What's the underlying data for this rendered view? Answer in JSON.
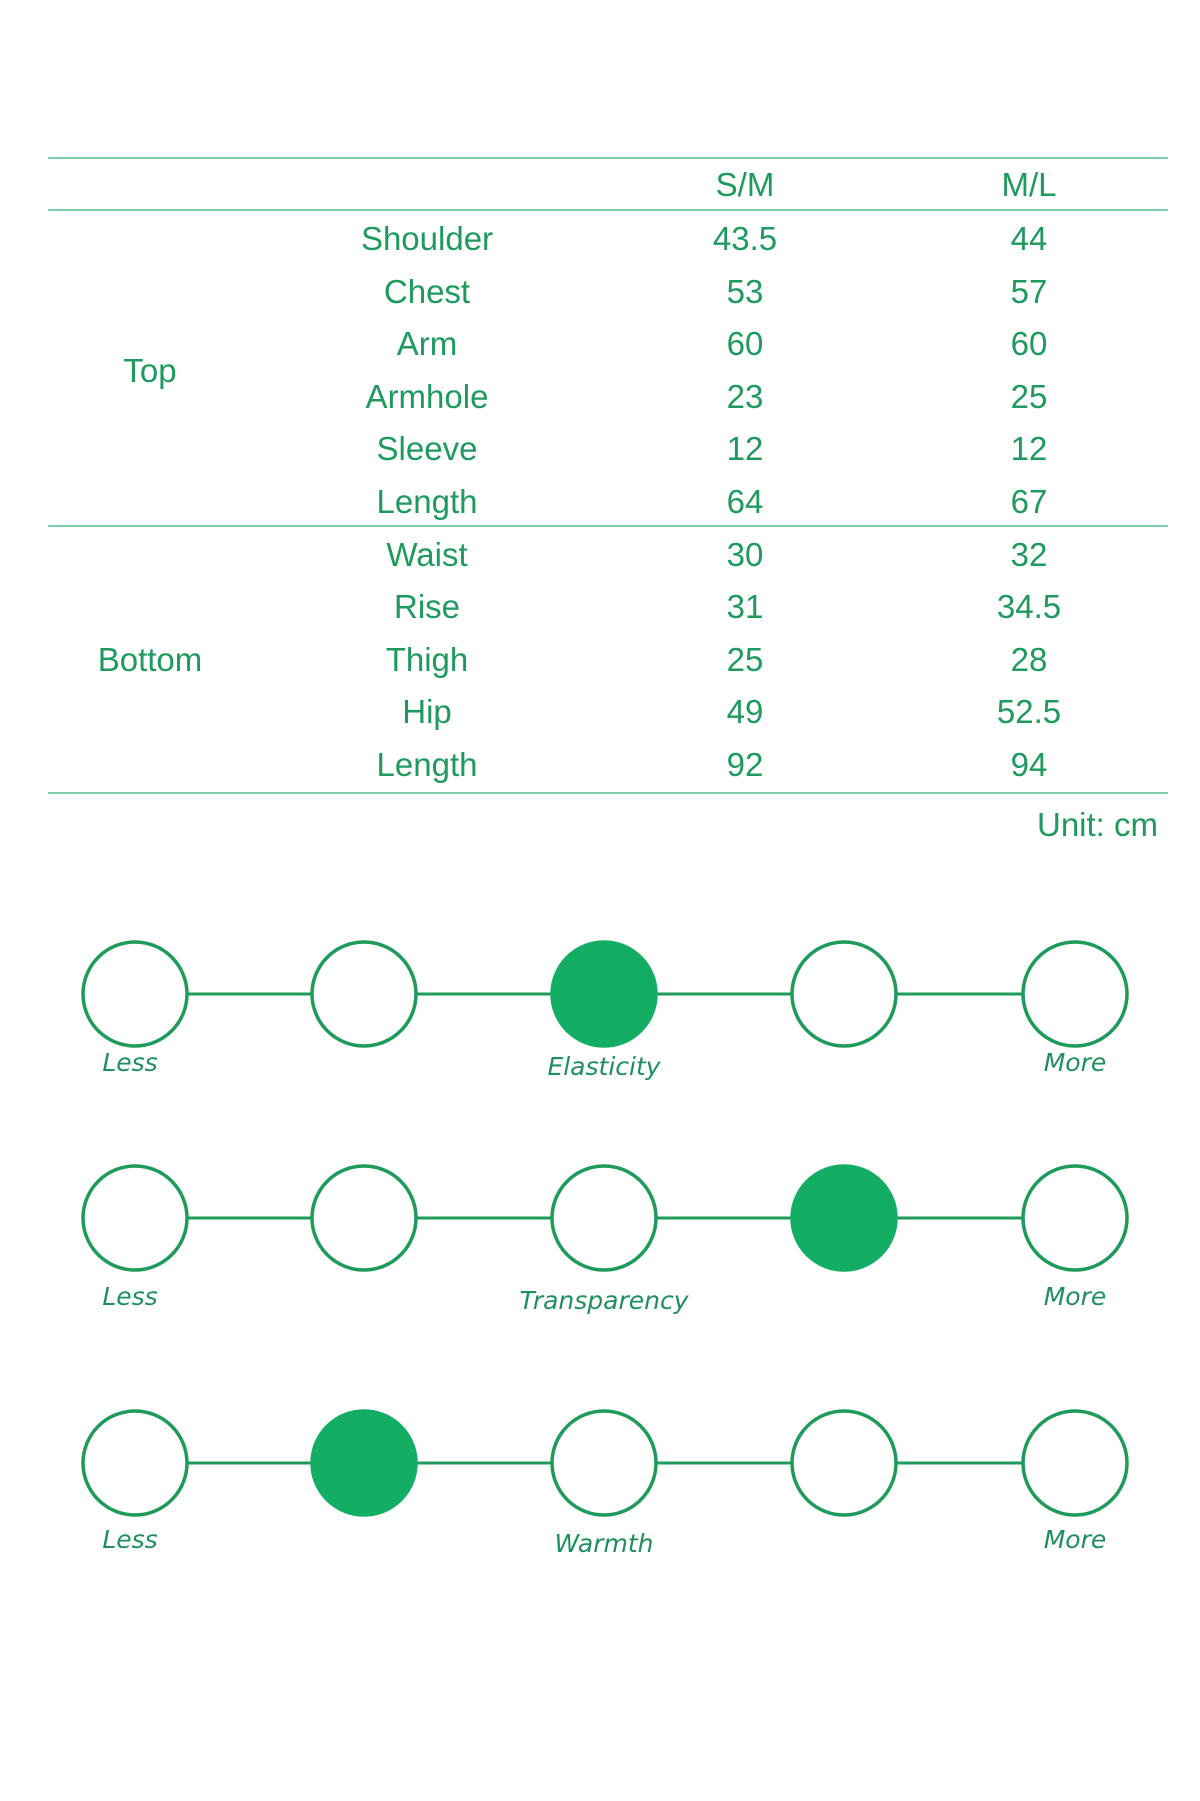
{
  "table": {
    "headers": [
      "",
      "",
      "S/M",
      "M/L"
    ],
    "groups": [
      {
        "name": "Top",
        "rows": [
          {
            "label": "Shoulder",
            "sm": "43.5",
            "ml": "44"
          },
          {
            "label": "Chest",
            "sm": "53",
            "ml": "57"
          },
          {
            "label": "Arm",
            "sm": "60",
            "ml": "60"
          },
          {
            "label": "Armhole",
            "sm": "23",
            "ml": "25"
          },
          {
            "label": "Sleeve",
            "sm": "12",
            "ml": "12"
          },
          {
            "label": "Length",
            "sm": "64",
            "ml": "67"
          }
        ]
      },
      {
        "name": "Bottom",
        "rows": [
          {
            "label": "Waist",
            "sm": "30",
            "ml": "32"
          },
          {
            "label": "Rise",
            "sm": "31",
            "ml": "34.5"
          },
          {
            "label": "Thigh",
            "sm": "25",
            "ml": "28"
          },
          {
            "label": "Hip",
            "sm": "49",
            "ml": "52.5"
          },
          {
            "label": "Length",
            "sm": "92",
            "ml": "94"
          }
        ]
      }
    ],
    "unit": "Unit: cm"
  },
  "scales": [
    {
      "name": "Elasticity",
      "level": 3,
      "of": 5,
      "min_label": "Less",
      "max_label": "More"
    },
    {
      "name": "Transparency",
      "level": 4,
      "of": 5,
      "min_label": "Less",
      "max_label": "More"
    },
    {
      "name": "Warmth",
      "level": 2,
      "of": 5,
      "min_label": "Less",
      "max_label": "More"
    }
  ],
  "colors": {
    "text": "#1f9a5e",
    "rule": "#7fcfa8",
    "fill": "#14ad64",
    "stroke": "#1e9a5a"
  }
}
